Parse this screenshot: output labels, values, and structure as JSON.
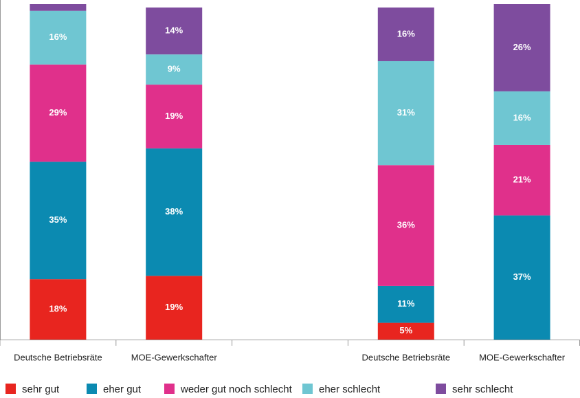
{
  "chart_data": {
    "type": "stacked_bar",
    "categories": [
      "Deutsche Betriebsräte",
      "MOE-Gewerkschafter",
      null,
      "Deutsche Betriebsräte",
      "MOE-Gewerkschafter"
    ],
    "series": [
      {
        "name": "sehr gut",
        "color": "#e8251f",
        "values": [
          18,
          19,
          null,
          5,
          0
        ],
        "value_labels": [
          "18%",
          "19%",
          null,
          "5%",
          null
        ]
      },
      {
        "name": "eher gut",
        "color": "#0b8ab1",
        "values": [
          35,
          38,
          null,
          11,
          37
        ],
        "value_labels": [
          "35%",
          "38%",
          null,
          "11%",
          "37%"
        ]
      },
      {
        "name": "weder gut noch schlecht",
        "color": "#e0308b",
        "values": [
          29,
          19,
          null,
          36,
          21
        ],
        "value_labels": [
          "29%",
          "19%",
          null,
          "36%",
          "21%"
        ]
      },
      {
        "name": "eher schlecht",
        "color": "#6fc6d2",
        "values": [
          16,
          9,
          null,
          31,
          16
        ],
        "value_labels": [
          "16%",
          "9%",
          null,
          "31%",
          "16%"
        ]
      },
      {
        "name": "sehr schlecht",
        "color": "#7e4c9e",
        "values": [
          2,
          14,
          null,
          16,
          26
        ],
        "value_labels": [
          null,
          "14%",
          null,
          "16%",
          "26%"
        ]
      }
    ],
    "ylim": [
      0,
      100
    ],
    "legend": "bottom"
  }
}
